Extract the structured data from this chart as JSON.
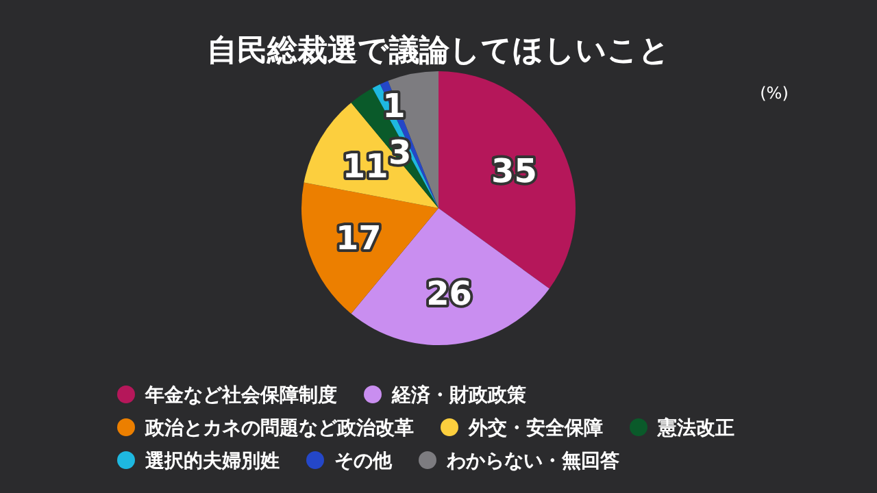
{
  "chart_data": {
    "type": "pie",
    "title": "自民総裁選で議論してほしいこと",
    "annotations": [
      "(%)"
    ],
    "categories": [
      "年金など社会保障制度",
      "経済・財政政策",
      "政治とカネの問題など政治改革",
      "外交・安全保障",
      "憲法改正",
      "選択的夫婦別姓",
      "その他",
      "わからない・無回答"
    ],
    "values": [
      35,
      26,
      17,
      11,
      3,
      1,
      1,
      6
    ],
    "colors": [
      "#b5175a",
      "#c98ef0",
      "#ec7f00",
      "#fccf3e",
      "#0a5a2a",
      "#1eb8e0",
      "#2447c8",
      "#7d7c80"
    ],
    "value_labels": [
      "35",
      "26",
      "17",
      "11",
      "3",
      null,
      "1",
      null
    ],
    "legend": "bottom"
  }
}
